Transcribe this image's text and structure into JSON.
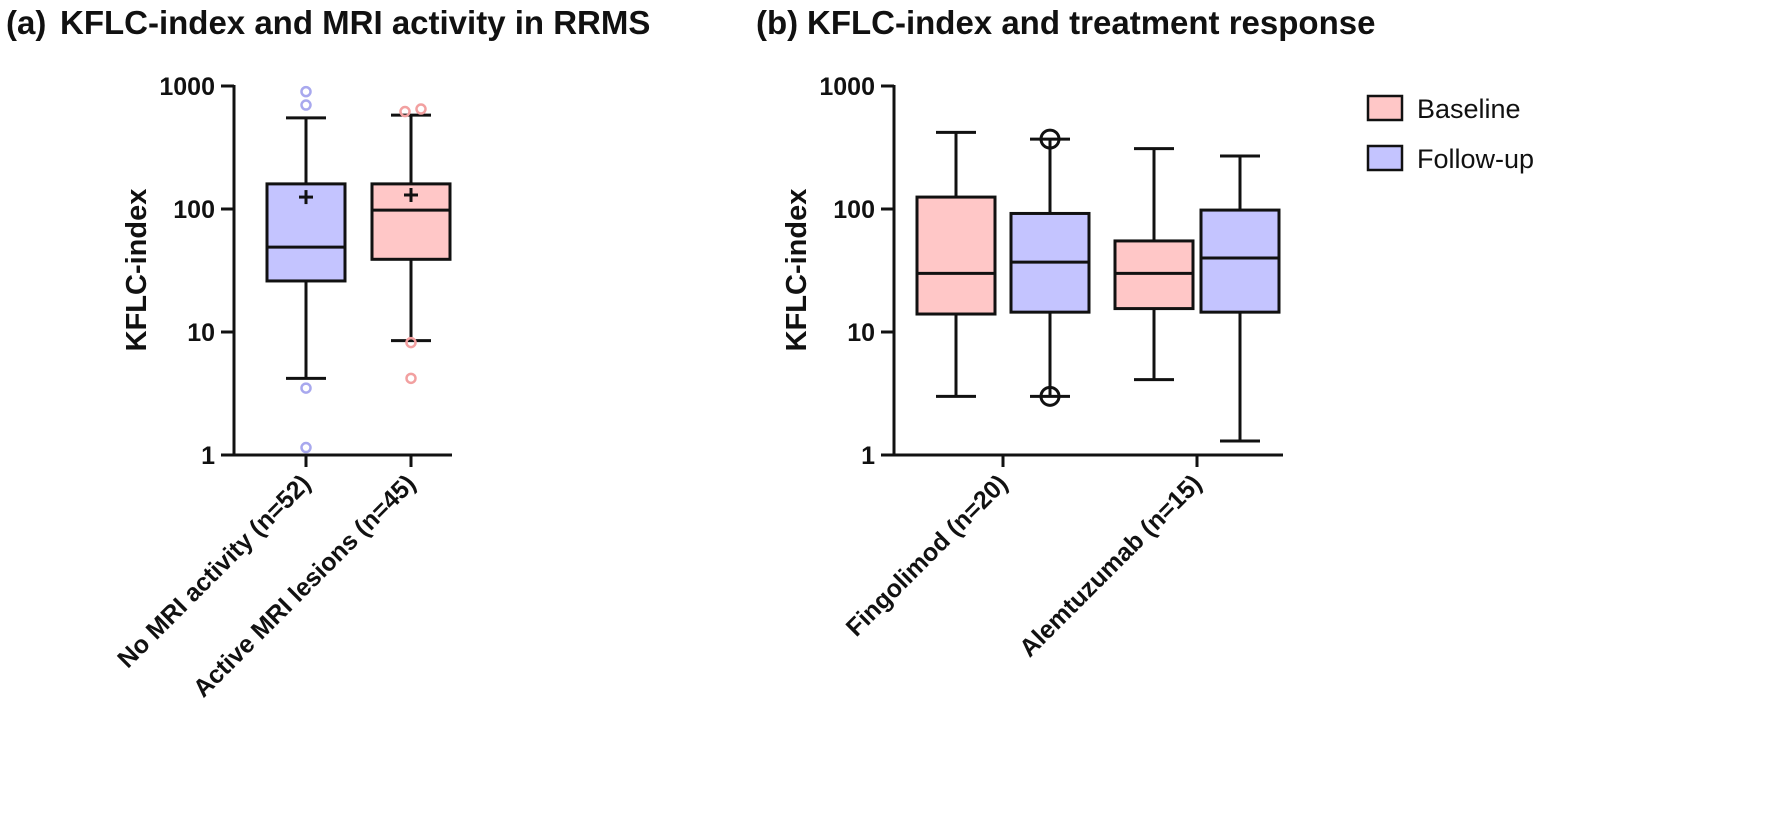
{
  "chart_data": [
    {
      "type": "box",
      "panel_label": "(a)",
      "title": "KFLC-index and MRI activity in RRMS",
      "ylabel": "KFLC-index",
      "yscale": "log",
      "ylim": [
        1,
        1000
      ],
      "yticks": [
        1,
        10,
        100,
        1000
      ],
      "ytick_labels": [
        "1",
        "10",
        "100",
        "1000"
      ],
      "categories": [
        "No MRI activity (n=52)",
        "Active MRI lesions (n=45)"
      ],
      "colors": {
        "pink": "#ffc7c7",
        "blue": "#c4c4ff",
        "pink_outlier": "#f2a0a0",
        "blue_outlier": "#a8a8ee",
        "line": "#111111"
      },
      "boxes": [
        {
          "category": "No MRI activity (n=52)",
          "fill": "blue",
          "whisker_low": 4.2,
          "q1": 26,
          "median": 49,
          "q3": 160,
          "whisker_high": 550,
          "mean": 125,
          "outliers": [
            1.15,
            3.5,
            700,
            900
          ]
        },
        {
          "category": "Active MRI lesions (n=45)",
          "fill": "pink",
          "whisker_low": 8.5,
          "q1": 39,
          "median": 98,
          "q3": 160,
          "whisker_high": 580,
          "mean": 130,
          "outliers": [
            4.2,
            8.2,
            620,
            650
          ]
        }
      ]
    },
    {
      "type": "box",
      "panel_label": "(b)",
      "title": "KFLC-index and treatment response",
      "ylabel": "KFLC-index",
      "yscale": "log",
      "ylim": [
        1,
        1000
      ],
      "yticks": [
        1,
        10,
        100,
        1000
      ],
      "ytick_labels": [
        "1",
        "10",
        "100",
        "1000"
      ],
      "categories": [
        "Fingolimod (n=20)",
        "Alemtuzumab (n=15)"
      ],
      "series_names": [
        "Baseline",
        "Follow-up"
      ],
      "legend": {
        "placement": "top-right",
        "entries": [
          {
            "label": "Baseline",
            "fill": "pink"
          },
          {
            "label": "Follow-up",
            "fill": "blue"
          }
        ]
      },
      "colors": {
        "pink": "#ffc7c7",
        "blue": "#c4c4ff",
        "line": "#111111"
      },
      "boxes": [
        {
          "category": "Fingolimod (n=20)",
          "series": "Baseline",
          "fill": "pink",
          "whisker_low": 3.0,
          "q1": 14,
          "median": 30,
          "q3": 125,
          "whisker_high": 420,
          "outliers": []
        },
        {
          "category": "Fingolimod (n=20)",
          "series": "Follow-up",
          "fill": "blue",
          "whisker_low": 3.0,
          "q1": 14.5,
          "median": 37,
          "q3": 92,
          "whisker_high": 370,
          "outliers": [
            3.0,
            370
          ]
        },
        {
          "category": "Alemtuzumab (n=15)",
          "series": "Baseline",
          "fill": "pink",
          "whisker_low": 4.1,
          "q1": 15.5,
          "median": 30,
          "q3": 55,
          "whisker_high": 310,
          "outliers": []
        },
        {
          "category": "Alemtuzumab (n=15)",
          "series": "Follow-up",
          "fill": "blue",
          "whisker_low": 1.3,
          "q1": 14.5,
          "median": 40,
          "q3": 98,
          "whisker_high": 270,
          "outliers": []
        }
      ]
    }
  ]
}
